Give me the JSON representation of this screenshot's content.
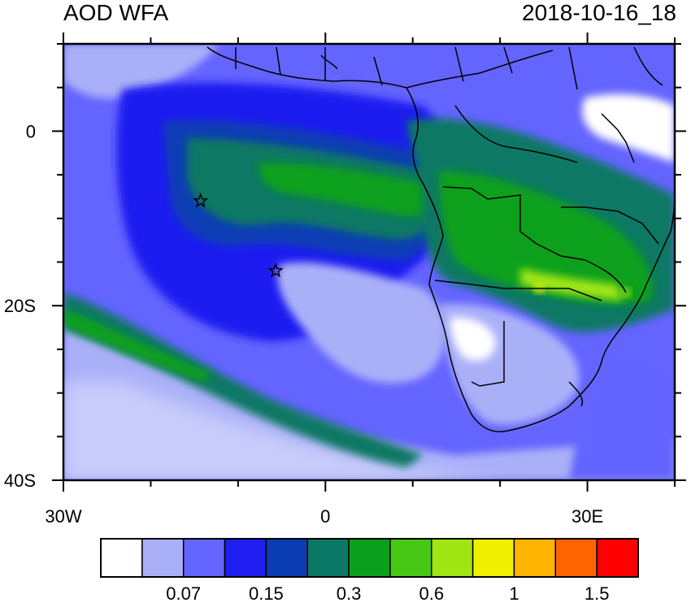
{
  "title_left": "AOD WFA",
  "title_right": "2018-10-16_18",
  "map": {
    "lon_range": [
      -30,
      40
    ],
    "lat_range": [
      -40,
      10
    ],
    "x_ticks": [
      {
        "lon": -30,
        "label": "30W"
      },
      {
        "lon": 0,
        "label": "0"
      },
      {
        "lon": 30,
        "label": "30E"
      }
    ],
    "y_ticks": [
      {
        "lat": 0,
        "label": "0"
      },
      {
        "lat": -20,
        "label": "20S"
      },
      {
        "lat": -40,
        "label": "40S"
      }
    ],
    "markers": [
      {
        "name": "star-1",
        "lon": -14.3,
        "lat": -8.0
      },
      {
        "name": "star-2",
        "lon": -5.7,
        "lat": -16.0
      }
    ]
  },
  "colorbar": {
    "colors": [
      "#ffffff",
      "#aab0f8",
      "#6464ff",
      "#1e1ef0",
      "#0a3cb4",
      "#0a7864",
      "#0aa01e",
      "#46c814",
      "#a0e614",
      "#f0f000",
      "#ffb400",
      "#ff6400",
      "#ff0000"
    ],
    "labels": [
      {
        "after": 2,
        "text": "0.07"
      },
      {
        "after": 4,
        "text": "0.15"
      },
      {
        "after": 6,
        "text": "0.3"
      },
      {
        "after": 8,
        "text": "0.6"
      },
      {
        "after": 10,
        "text": "1"
      },
      {
        "after": 12,
        "text": "1.5"
      }
    ]
  }
}
